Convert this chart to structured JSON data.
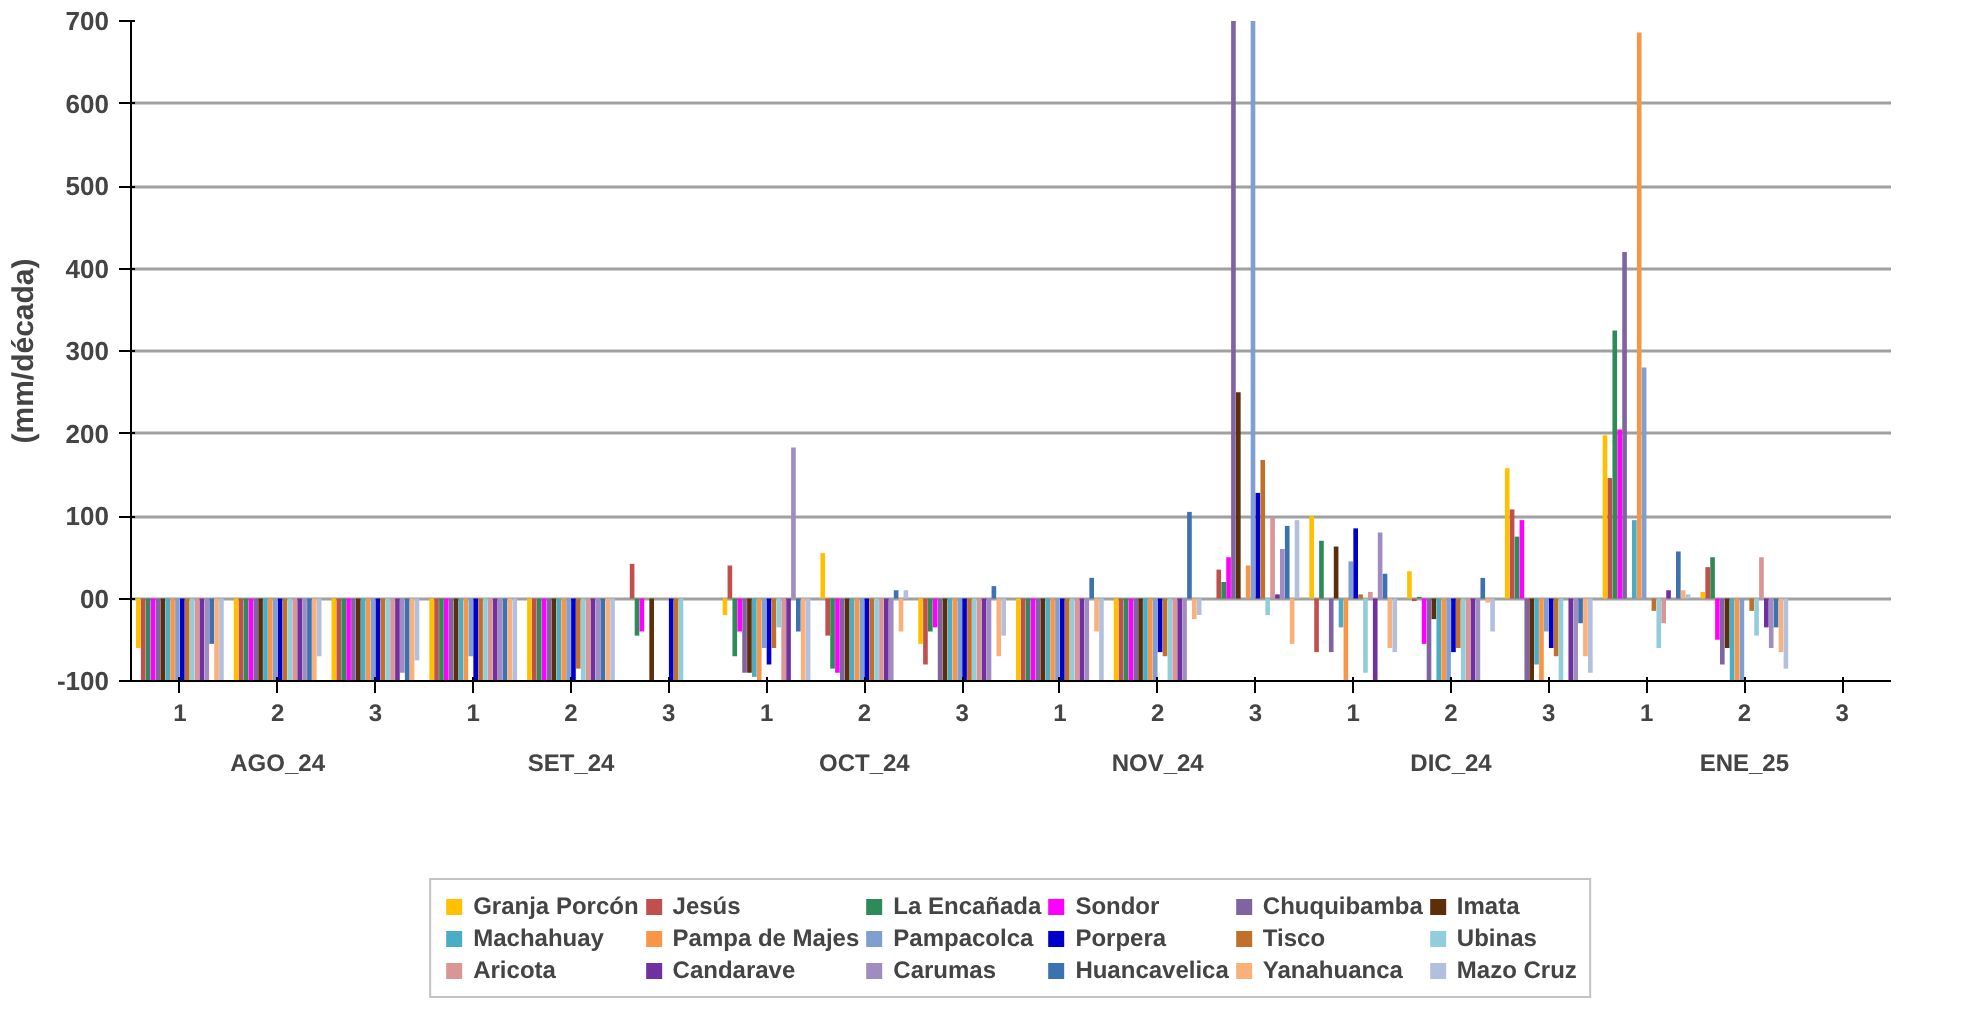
{
  "chart_data": {
    "type": "bar",
    "ylabel": "(mm/década)",
    "categories": [
      "1",
      "2",
      "3",
      "1",
      "2",
      "3",
      "1",
      "2",
      "3",
      "1",
      "2",
      "3",
      "1",
      "2",
      "3",
      "1",
      "2",
      "3"
    ],
    "annotations": [
      "AGO_24",
      "SET_24",
      "OCT_24",
      "NOV_24",
      "DIC_24",
      "ENE_25"
    ],
    "ylim": [
      -100,
      700
    ],
    "yticks": [
      -100,
      {
        "value": 0,
        "label": "00"
      },
      100,
      200,
      300,
      400,
      500,
      600,
      700
    ],
    "grid": "y",
    "legend": "bottom",
    "series": [
      {
        "name": "Granja Porcón",
        "color": "#ffc000",
        "values": [
          -60,
          -100,
          -100,
          -100,
          -100,
          null,
          -20,
          55,
          -55,
          -100,
          -100,
          null,
          100,
          33,
          158,
          198,
          8,
          null
        ]
      },
      {
        "name": "Jesús",
        "color": "#c0504d",
        "values": [
          -100,
          -100,
          -100,
          -100,
          -100,
          42,
          40,
          -45,
          -80,
          -100,
          -100,
          35,
          -65,
          -3,
          108,
          146,
          38,
          null
        ]
      },
      {
        "name": "La Encañada",
        "color": "#2e8b57",
        "values": [
          -100,
          -100,
          -100,
          -100,
          -100,
          -45,
          -70,
          -85,
          -40,
          -100,
          -100,
          20,
          70,
          2,
          75,
          325,
          50,
          null
        ]
      },
      {
        "name": "Sondor",
        "color": "#ff00ff",
        "values": [
          -100,
          -100,
          -100,
          -100,
          -100,
          -40,
          -40,
          -90,
          -35,
          -100,
          -100,
          50,
          null,
          -55,
          95,
          205,
          -50,
          null
        ]
      },
      {
        "name": "Chuquibamba",
        "color": "#8064a2",
        "values": [
          -100,
          -100,
          -100,
          -100,
          -100,
          null,
          -90,
          -100,
          -100,
          -100,
          -100,
          700,
          -65,
          -100,
          -100,
          420,
          -80,
          null
        ]
      },
      {
        "name": "Imata",
        "color": "#5c2e0a",
        "values": [
          -100,
          -100,
          -100,
          -100,
          -100,
          -100,
          -90,
          -100,
          -100,
          -100,
          -100,
          250,
          63,
          -25,
          -100,
          null,
          -60,
          null
        ]
      },
      {
        "name": "Machahuay",
        "color": "#4bacc6",
        "values": [
          -100,
          -100,
          -100,
          -100,
          -100,
          null,
          -95,
          -100,
          -100,
          -100,
          -100,
          null,
          -35,
          -100,
          -80,
          95,
          -100,
          null
        ]
      },
      {
        "name": "Pampa de Majes",
        "color": "#f79646",
        "values": [
          -100,
          -100,
          -100,
          -100,
          -100,
          null,
          -100,
          -100,
          -100,
          -100,
          -100,
          40,
          -100,
          -100,
          -100,
          686,
          -100,
          null
        ]
      },
      {
        "name": "Pampacolca",
        "color": "#7f9fd0",
        "values": [
          -100,
          -100,
          -100,
          -70,
          -100,
          null,
          -60,
          -100,
          -100,
          -100,
          -100,
          700,
          45,
          -100,
          -40,
          280,
          -100,
          null
        ]
      },
      {
        "name": "Porpera",
        "color": "#0000cc",
        "values": [
          -100,
          -100,
          -100,
          -100,
          -100,
          -100,
          -80,
          -100,
          -100,
          -100,
          -65,
          128,
          85,
          -65,
          -60,
          null,
          null,
          null
        ]
      },
      {
        "name": "Tisco",
        "color": "#c0702b",
        "values": [
          -100,
          -100,
          -100,
          -100,
          -85,
          -100,
          -60,
          -100,
          -100,
          -100,
          -70,
          168,
          5,
          -60,
          -70,
          -15,
          -15,
          null
        ]
      },
      {
        "name": "Ubinas",
        "color": "#92cddc",
        "values": [
          -100,
          -100,
          -100,
          -100,
          -100,
          -100,
          -35,
          -100,
          -100,
          -100,
          -100,
          -20,
          -90,
          -100,
          -100,
          -60,
          -45,
          null
        ]
      },
      {
        "name": "Aricota",
        "color": "#d99694",
        "values": [
          -100,
          -100,
          -100,
          -100,
          -100,
          null,
          -100,
          -100,
          -100,
          -100,
          -100,
          98,
          8,
          -100,
          null,
          -30,
          50,
          null
        ]
      },
      {
        "name": "Candarave",
        "color": "#7030a0",
        "values": [
          -100,
          -100,
          -100,
          -100,
          -100,
          null,
          -100,
          -100,
          -100,
          -100,
          -100,
          5,
          -100,
          -100,
          -100,
          10,
          -35,
          null
        ]
      },
      {
        "name": "Carumas",
        "color": "#a08cc0",
        "values": [
          -100,
          -100,
          -90,
          -100,
          -100,
          null,
          183,
          -100,
          -100,
          -100,
          -100,
          60,
          80,
          -100,
          -100,
          null,
          -60,
          null
        ]
      },
      {
        "name": "Huancavelica",
        "color": "#3d72b0",
        "values": [
          -55,
          -100,
          -100,
          -100,
          -100,
          null,
          -40,
          10,
          15,
          25,
          105,
          88,
          30,
          25,
          -30,
          57,
          -35,
          null
        ]
      },
      {
        "name": "Yanahuanca",
        "color": "#fab07a",
        "values": [
          -100,
          -100,
          -100,
          -100,
          -100,
          null,
          -100,
          -40,
          -70,
          -40,
          -25,
          -55,
          -60,
          -5,
          -70,
          10,
          -65,
          null
        ]
      },
      {
        "name": "Mazo Cruz",
        "color": "#b3c0dd",
        "values": [
          -100,
          -70,
          -75,
          -100,
          -100,
          null,
          -100,
          10,
          -45,
          -100,
          -20,
          95,
          -65,
          -40,
          -90,
          5,
          -85,
          null
        ]
      }
    ]
  }
}
